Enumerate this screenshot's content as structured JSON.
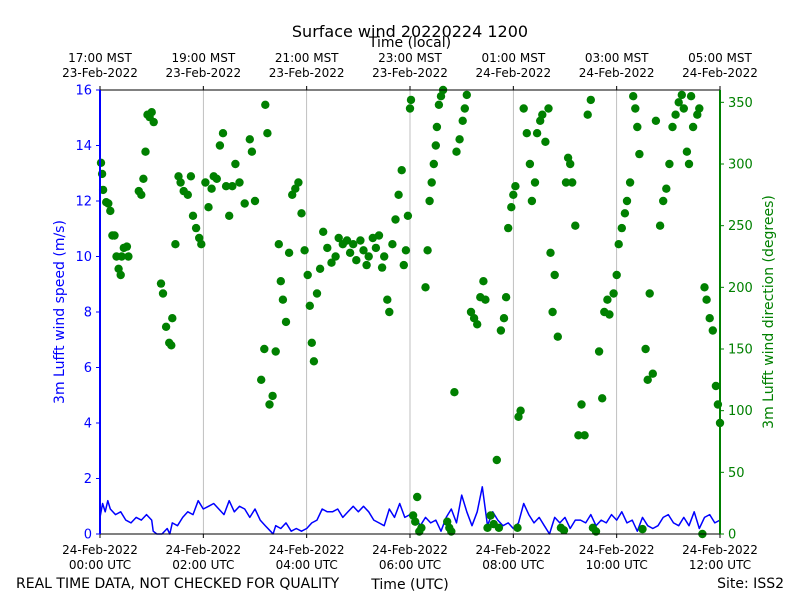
{
  "chart_data": {
    "type": "line+scatter",
    "title": "Surface wind 20220224 1200",
    "xlabel_bottom": "Time (UTC)",
    "xlabel_top": "Time (local)",
    "ylabel_left": "3m Lufft wind speed (m/s)",
    "ylabel_right": "3m Lufft wind direction (degrees)",
    "footer_left": "REAL TIME DATA, NOT CHECKED FOR QUALITY",
    "footer_right": "Site: ISS2",
    "xlim_hours": [
      0,
      12
    ],
    "ylim_left": [
      0,
      16
    ],
    "ylim_right": [
      0,
      360
    ],
    "grid": "vertical",
    "colors": {
      "speed": "#0000ff",
      "direction": "#008000",
      "grid": "#b0b0b0",
      "axis": "#000000"
    },
    "bottom_ticks": [
      {
        "hour": 0,
        "line1": "24-Feb-2022",
        "line2": "00:00 UTC"
      },
      {
        "hour": 2,
        "line1": "24-Feb-2022",
        "line2": "02:00 UTC"
      },
      {
        "hour": 4,
        "line1": "24-Feb-2022",
        "line2": "04:00 UTC"
      },
      {
        "hour": 6,
        "line1": "24-Feb-2022",
        "line2": "06:00 UTC"
      },
      {
        "hour": 8,
        "line1": "24-Feb-2022",
        "line2": "08:00 UTC"
      },
      {
        "hour": 10,
        "line1": "24-Feb-2022",
        "line2": "10:00 UTC"
      },
      {
        "hour": 12,
        "line1": "24-Feb-2022",
        "line2": "12:00 UTC"
      }
    ],
    "top_ticks": [
      {
        "hour": 0,
        "line1": "17:00 MST",
        "line2": "23-Feb-2022"
      },
      {
        "hour": 2,
        "line1": "19:00 MST",
        "line2": "23-Feb-2022"
      },
      {
        "hour": 4,
        "line1": "21:00 MST",
        "line2": "23-Feb-2022"
      },
      {
        "hour": 6,
        "line1": "23:00 MST",
        "line2": "23-Feb-2022"
      },
      {
        "hour": 8,
        "line1": "01:00 MST",
        "line2": "24-Feb-2022"
      },
      {
        "hour": 10,
        "line1": "03:00 MST",
        "line2": "24-Feb-2022"
      },
      {
        "hour": 12,
        "line1": "05:00 MST",
        "line2": "24-Feb-2022"
      }
    ],
    "left_ticks": [
      0,
      2,
      4,
      6,
      8,
      10,
      12,
      14,
      16
    ],
    "right_ticks": [
      0,
      50,
      100,
      150,
      200,
      250,
      300,
      350
    ],
    "speed_series": {
      "name": "wind speed (m/s)",
      "hours": [
        0,
        0.05,
        0.1,
        0.15,
        0.2,
        0.3,
        0.4,
        0.5,
        0.6,
        0.7,
        0.8,
        0.9,
        1.0,
        1.03,
        1.1,
        1.2,
        1.3,
        1.35,
        1.4,
        1.5,
        1.6,
        1.7,
        1.8,
        1.9,
        2.0,
        2.1,
        2.2,
        2.3,
        2.4,
        2.5,
        2.6,
        2.7,
        2.8,
        2.9,
        3.0,
        3.1,
        3.2,
        3.3,
        3.35,
        3.4,
        3.5,
        3.6,
        3.7,
        3.8,
        3.9,
        4.0,
        4.1,
        4.2,
        4.3,
        4.4,
        4.5,
        4.6,
        4.7,
        4.8,
        4.9,
        5.0,
        5.1,
        5.2,
        5.3,
        5.4,
        5.5,
        5.6,
        5.7,
        5.8,
        5.9,
        6.0,
        6.1,
        6.2,
        6.3,
        6.4,
        6.5,
        6.6,
        6.7,
        6.8,
        6.9,
        7.0,
        7.1,
        7.2,
        7.3,
        7.4,
        7.5,
        7.6,
        7.7,
        7.8,
        7.9,
        8.0,
        8.1,
        8.2,
        8.3,
        8.4,
        8.5,
        8.6,
        8.7,
        8.8,
        8.9,
        9.0,
        9.1,
        9.2,
        9.3,
        9.4,
        9.5,
        9.6,
        9.7,
        9.8,
        9.9,
        10.0,
        10.1,
        10.2,
        10.3,
        10.4,
        10.5,
        10.6,
        10.7,
        10.8,
        10.9,
        11.0,
        11.1,
        11.2,
        11.3,
        11.4,
        11.5,
        11.6,
        11.7,
        11.8,
        11.9,
        12.0
      ],
      "values": [
        0.6,
        1.1,
        0.8,
        1.2,
        0.9,
        0.7,
        0.8,
        0.5,
        0.4,
        0.6,
        0.5,
        0.7,
        0.5,
        0.1,
        0.0,
        0.0,
        0.2,
        0.0,
        0.4,
        0.3,
        0.6,
        0.8,
        0.7,
        1.2,
        0.9,
        1.0,
        1.1,
        0.9,
        0.7,
        1.2,
        0.8,
        1.0,
        0.9,
        0.6,
        0.9,
        0.5,
        0.3,
        0.1,
        0.0,
        0.3,
        0.2,
        0.4,
        0.1,
        0.2,
        0.1,
        0.2,
        0.4,
        0.5,
        0.9,
        0.8,
        0.8,
        0.9,
        0.6,
        0.8,
        1.0,
        0.8,
        1.0,
        0.8,
        0.5,
        0.4,
        0.3,
        0.9,
        0.6,
        1.1,
        0.6,
        0.7,
        0.6,
        0.3,
        0.6,
        0.4,
        0.5,
        0.1,
        0.6,
        0.9,
        0.4,
        1.4,
        0.8,
        0.3,
        0.8,
        1.7,
        0.3,
        0.8,
        0.5,
        0.3,
        0.4,
        0.2,
        0.4,
        1.1,
        0.7,
        0.4,
        0.6,
        0.3,
        0.0,
        0.6,
        0.4,
        0.6,
        0.2,
        0.5,
        0.5,
        0.4,
        0.7,
        0.3,
        0.5,
        0.4,
        0.7,
        0.5,
        0.8,
        0.4,
        0.5,
        0.1,
        0.6,
        0.3,
        0.2,
        0.3,
        0.6,
        0.7,
        0.4,
        0.3,
        0.6,
        0.3,
        0.8,
        0.2,
        0.6,
        0.7,
        0.4,
        0.5
      ]
    },
    "direction_series": {
      "name": "wind direction (degrees)",
      "points": [
        [
          0.02,
          301
        ],
        [
          0.04,
          292
        ],
        [
          0.06,
          279
        ],
        [
          0.12,
          269
        ],
        [
          0.16,
          268
        ],
        [
          0.2,
          262
        ],
        [
          0.24,
          242
        ],
        [
          0.28,
          242
        ],
        [
          0.32,
          225
        ],
        [
          0.36,
          215
        ],
        [
          0.4,
          210
        ],
        [
          0.42,
          225
        ],
        [
          0.46,
          232
        ],
        [
          0.52,
          233
        ],
        [
          0.55,
          225
        ],
        [
          0.75,
          278
        ],
        [
          0.8,
          275
        ],
        [
          0.84,
          288
        ],
        [
          0.88,
          310
        ],
        [
          0.92,
          340
        ],
        [
          0.96,
          338
        ],
        [
          1.0,
          342
        ],
        [
          1.04,
          334
        ],
        [
          1.18,
          203
        ],
        [
          1.22,
          195
        ],
        [
          1.28,
          168
        ],
        [
          1.34,
          155
        ],
        [
          1.38,
          153
        ],
        [
          1.4,
          175
        ],
        [
          1.46,
          235
        ],
        [
          1.52,
          290
        ],
        [
          1.56,
          285
        ],
        [
          1.62,
          278
        ],
        [
          1.7,
          275
        ],
        [
          1.76,
          290
        ],
        [
          1.8,
          258
        ],
        [
          1.86,
          248
        ],
        [
          1.92,
          240
        ],
        [
          1.96,
          235
        ],
        [
          2.04,
          285
        ],
        [
          2.1,
          265
        ],
        [
          2.16,
          280
        ],
        [
          2.2,
          290
        ],
        [
          2.26,
          288
        ],
        [
          2.32,
          315
        ],
        [
          2.38,
          325
        ],
        [
          2.44,
          282
        ],
        [
          2.5,
          258
        ],
        [
          2.56,
          282
        ],
        [
          2.62,
          300
        ],
        [
          2.7,
          285
        ],
        [
          2.8,
          268
        ],
        [
          2.9,
          320
        ],
        [
          2.94,
          310
        ],
        [
          3.0,
          270
        ],
        [
          3.12,
          125
        ],
        [
          3.18,
          150
        ],
        [
          3.2,
          348
        ],
        [
          3.24,
          325
        ],
        [
          3.28,
          105
        ],
        [
          3.34,
          112
        ],
        [
          3.4,
          148
        ],
        [
          3.46,
          235
        ],
        [
          3.5,
          205
        ],
        [
          3.54,
          190
        ],
        [
          3.6,
          172
        ],
        [
          3.66,
          228
        ],
        [
          3.72,
          275
        ],
        [
          3.78,
          280
        ],
        [
          3.84,
          285
        ],
        [
          3.9,
          260
        ],
        [
          3.96,
          230
        ],
        [
          4.02,
          210
        ],
        [
          4.06,
          185
        ],
        [
          4.1,
          155
        ],
        [
          4.14,
          140
        ],
        [
          4.2,
          195
        ],
        [
          4.26,
          215
        ],
        [
          4.32,
          245
        ],
        [
          4.4,
          232
        ],
        [
          4.48,
          220
        ],
        [
          4.56,
          225
        ],
        [
          4.62,
          240
        ],
        [
          4.7,
          235
        ],
        [
          4.78,
          238
        ],
        [
          4.84,
          228
        ],
        [
          4.9,
          235
        ],
        [
          4.96,
          222
        ],
        [
          5.04,
          238
        ],
        [
          5.1,
          230
        ],
        [
          5.16,
          218
        ],
        [
          5.2,
          225
        ],
        [
          5.28,
          240
        ],
        [
          5.34,
          232
        ],
        [
          5.4,
          242
        ],
        [
          5.46,
          216
        ],
        [
          5.5,
          225
        ],
        [
          5.56,
          190
        ],
        [
          5.6,
          180
        ],
        [
          5.66,
          235
        ],
        [
          5.72,
          255
        ],
        [
          5.78,
          275
        ],
        [
          5.84,
          295
        ],
        [
          5.88,
          218
        ],
        [
          5.92,
          230
        ],
        [
          5.96,
          258
        ],
        [
          6.0,
          345
        ],
        [
          6.02,
          352
        ],
        [
          6.06,
          15
        ],
        [
          6.1,
          10
        ],
        [
          6.14,
          30
        ],
        [
          6.18,
          2
        ],
        [
          6.22,
          5
        ],
        [
          6.3,
          200
        ],
        [
          6.34,
          230
        ],
        [
          6.38,
          270
        ],
        [
          6.42,
          285
        ],
        [
          6.46,
          300
        ],
        [
          6.5,
          315
        ],
        [
          6.52,
          330
        ],
        [
          6.56,
          348
        ],
        [
          6.6,
          355
        ],
        [
          6.64,
          360
        ],
        [
          6.72,
          10
        ],
        [
          6.76,
          5
        ],
        [
          6.8,
          2
        ],
        [
          6.86,
          115
        ],
        [
          6.9,
          310
        ],
        [
          6.96,
          320
        ],
        [
          7.02,
          335
        ],
        [
          7.06,
          345
        ],
        [
          7.1,
          356
        ],
        [
          7.18,
          180
        ],
        [
          7.24,
          175
        ],
        [
          7.3,
          170
        ],
        [
          7.36,
          192
        ],
        [
          7.42,
          205
        ],
        [
          7.46,
          190
        ],
        [
          7.5,
          5
        ],
        [
          7.56,
          15
        ],
        [
          7.62,
          8
        ],
        [
          7.68,
          60
        ],
        [
          7.72,
          5
        ],
        [
          7.76,
          165
        ],
        [
          7.82,
          175
        ],
        [
          7.86,
          192
        ],
        [
          7.9,
          248
        ],
        [
          7.96,
          265
        ],
        [
          8.0,
          275
        ],
        [
          8.04,
          282
        ],
        [
          8.08,
          5
        ],
        [
          8.1,
          95
        ],
        [
          8.14,
          100
        ],
        [
          8.2,
          345
        ],
        [
          8.26,
          325
        ],
        [
          8.32,
          300
        ],
        [
          8.36,
          270
        ],
        [
          8.42,
          285
        ],
        [
          8.46,
          325
        ],
        [
          8.52,
          335
        ],
        [
          8.56,
          340
        ],
        [
          8.62,
          318
        ],
        [
          8.68,
          345
        ],
        [
          8.72,
          228
        ],
        [
          8.76,
          180
        ],
        [
          8.8,
          210
        ],
        [
          8.86,
          160
        ],
        [
          8.92,
          5
        ],
        [
          8.98,
          3
        ],
        [
          9.02,
          285
        ],
        [
          9.06,
          305
        ],
        [
          9.1,
          300
        ],
        [
          9.14,
          285
        ],
        [
          9.2,
          250
        ],
        [
          9.26,
          80
        ],
        [
          9.32,
          105
        ],
        [
          9.38,
          80
        ],
        [
          9.44,
          340
        ],
        [
          9.5,
          352
        ],
        [
          9.54,
          5
        ],
        [
          9.6,
          2
        ],
        [
          9.66,
          148
        ],
        [
          9.72,
          110
        ],
        [
          9.76,
          180
        ],
        [
          9.82,
          190
        ],
        [
          9.86,
          178
        ],
        [
          9.94,
          195
        ],
        [
          10.0,
          210
        ],
        [
          10.04,
          235
        ],
        [
          10.1,
          248
        ],
        [
          10.16,
          260
        ],
        [
          10.2,
          270
        ],
        [
          10.26,
          285
        ],
        [
          10.32,
          355
        ],
        [
          10.36,
          345
        ],
        [
          10.4,
          330
        ],
        [
          10.44,
          308
        ],
        [
          10.5,
          4
        ],
        [
          10.56,
          150
        ],
        [
          10.6,
          125
        ],
        [
          10.64,
          195
        ],
        [
          10.7,
          130
        ],
        [
          10.76,
          335
        ],
        [
          10.84,
          250
        ],
        [
          10.9,
          270
        ],
        [
          10.96,
          280
        ],
        [
          11.02,
          300
        ],
        [
          11.08,
          330
        ],
        [
          11.14,
          340
        ],
        [
          11.2,
          350
        ],
        [
          11.26,
          356
        ],
        [
          11.3,
          345
        ],
        [
          11.36,
          310
        ],
        [
          11.4,
          300
        ],
        [
          11.44,
          355
        ],
        [
          11.48,
          330
        ],
        [
          11.56,
          340
        ],
        [
          11.6,
          345
        ],
        [
          11.66,
          0
        ],
        [
          11.7,
          200
        ],
        [
          11.74,
          190
        ],
        [
          11.8,
          175
        ],
        [
          11.86,
          165
        ],
        [
          11.92,
          120
        ],
        [
          11.96,
          105
        ],
        [
          12.0,
          90
        ]
      ]
    }
  }
}
